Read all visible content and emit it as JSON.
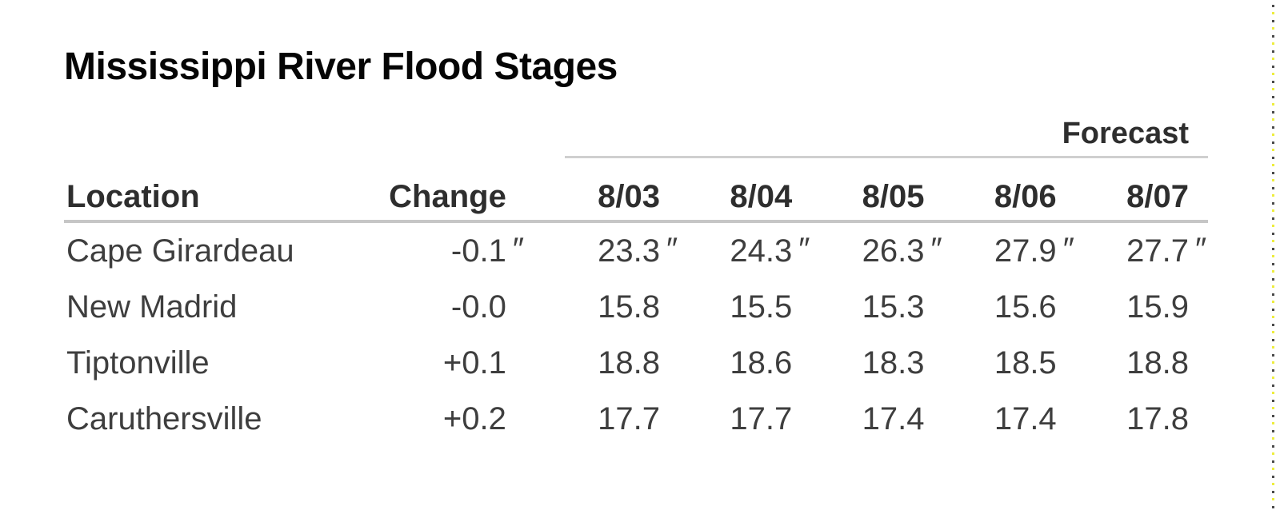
{
  "page": {
    "title": "Mississippi River Flood Stages"
  },
  "table": {
    "forecast_label": "Forecast",
    "columns": {
      "location": "Location",
      "change": "Change",
      "dates": [
        "8/03",
        "8/04",
        "8/05",
        "8/06",
        "8/07"
      ]
    },
    "rows": [
      {
        "location": "Cape Girardeau",
        "change": "-0.1",
        "change_unit": "″",
        "values": [
          "23.3",
          "24.3",
          "26.3",
          "27.9",
          "27.7"
        ],
        "unit": "″"
      },
      {
        "location": "New Madrid",
        "change": "-0.0",
        "change_unit": "",
        "values": [
          "15.8",
          "15.5",
          "15.3",
          "15.6",
          "15.9"
        ],
        "unit": ""
      },
      {
        "location": "Tiptonville",
        "change": "+0.1",
        "change_unit": "",
        "values": [
          "18.8",
          "18.6",
          "18.3",
          "18.5",
          "18.8"
        ],
        "unit": ""
      },
      {
        "location": "Caruthersville",
        "change": "+0.2",
        "change_unit": "",
        "values": [
          "17.7",
          "17.7",
          "17.4",
          "17.4",
          "17.8"
        ],
        "unit": ""
      }
    ]
  },
  "colors": {
    "background": "#ffffff",
    "title_text": "#050505",
    "header_text": "#2e2e2e",
    "data_text": "#3e3e3e",
    "rule_light": "#cfcfcf",
    "rule_header": "#c6c6c6",
    "edge_dot_dark": "#4a4a4a",
    "edge_dot_yellow": "#eeee3e"
  },
  "chart_data": {
    "type": "table",
    "title": "Mississippi River Flood Stages",
    "group_header": {
      "label": "Forecast",
      "covers_columns": [
        "8/03",
        "8/04",
        "8/05",
        "8/06",
        "8/07"
      ]
    },
    "columns": [
      "Location",
      "Change",
      "8/03",
      "8/04",
      "8/05",
      "8/06",
      "8/07"
    ],
    "rows": [
      [
        "Cape Girardeau",
        "-0.1″",
        "23.3″",
        "24.3″",
        "26.3″",
        "27.9″",
        "27.7″"
      ],
      [
        "New Madrid",
        "-0.0",
        "15.8",
        "15.5",
        "15.3",
        "15.6",
        "15.9"
      ],
      [
        "Tiptonville",
        "+0.1",
        "18.8",
        "18.6",
        "18.3",
        "18.5",
        "18.8"
      ],
      [
        "Caruthersville",
        "+0.2",
        "17.7",
        "17.7",
        "17.4",
        "17.4",
        "17.8"
      ]
    ]
  }
}
